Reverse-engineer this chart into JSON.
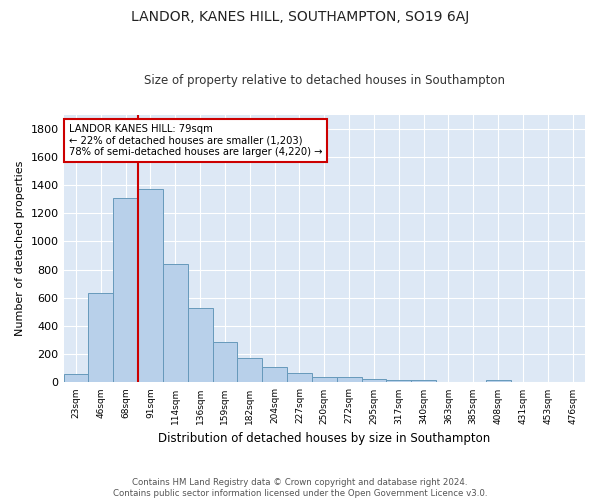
{
  "title": "LANDOR, KANES HILL, SOUTHAMPTON, SO19 6AJ",
  "subtitle": "Size of property relative to detached houses in Southampton",
  "xlabel": "Distribution of detached houses by size in Southampton",
  "ylabel": "Number of detached properties",
  "footnote1": "Contains HM Land Registry data © Crown copyright and database right 2024.",
  "footnote2": "Contains public sector information licensed under the Open Government Licence v3.0.",
  "bin_labels": [
    "23sqm",
    "46sqm",
    "68sqm",
    "91sqm",
    "114sqm",
    "136sqm",
    "159sqm",
    "182sqm",
    "204sqm",
    "227sqm",
    "250sqm",
    "272sqm",
    "295sqm",
    "317sqm",
    "340sqm",
    "363sqm",
    "385sqm",
    "408sqm",
    "431sqm",
    "453sqm",
    "476sqm"
  ],
  "bar_heights": [
    60,
    635,
    1305,
    1370,
    840,
    525,
    285,
    175,
    110,
    70,
    40,
    40,
    25,
    20,
    15,
    5,
    5,
    15,
    0,
    0,
    0
  ],
  "bar_color": "#b8d0ea",
  "bar_edge_color": "#6699bb",
  "background_color": "#dde8f5",
  "grid_color": "#ffffff",
  "vline_color": "#cc0000",
  "annotation_text": "LANDOR KANES HILL: 79sqm\n← 22% of detached houses are smaller (1,203)\n78% of semi-detached houses are larger (4,220) →",
  "annotation_box_color": "#ffffff",
  "annotation_box_edge_color": "#cc0000",
  "ylim": [
    0,
    1900
  ],
  "yticks": [
    0,
    200,
    400,
    600,
    800,
    1000,
    1200,
    1400,
    1600,
    1800
  ],
  "vline_index": 2.5
}
